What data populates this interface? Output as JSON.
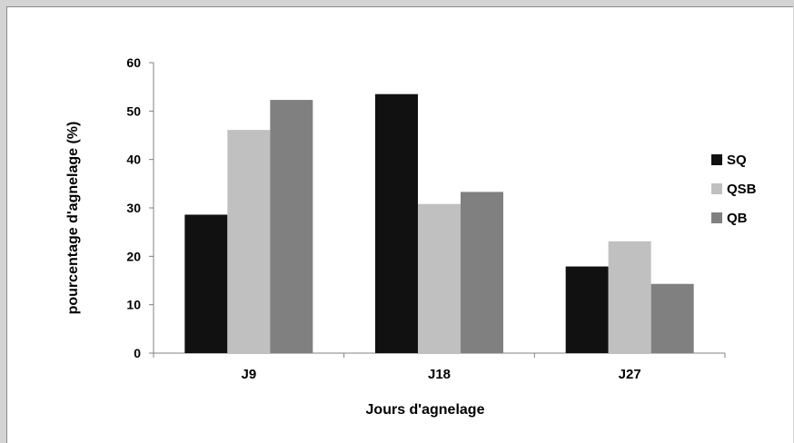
{
  "chart_data": {
    "type": "bar",
    "title": "",
    "xlabel": "Jours d'agnelage",
    "ylabel": "pourcentage d'agnelage  (%)",
    "categories": [
      "J9",
      "J18",
      "J27"
    ],
    "ylim": [
      0,
      60
    ],
    "yticks": [
      0,
      10,
      20,
      30,
      40,
      50,
      60
    ],
    "grid": false,
    "legend_position": "right",
    "series": [
      {
        "name": "SQ",
        "color": "#111111",
        "values": [
          28.6,
          53.5,
          17.9
        ]
      },
      {
        "name": "QSB",
        "color": "#c0c0c0",
        "values": [
          46.1,
          30.8,
          23.1
        ]
      },
      {
        "name": "QB",
        "color": "#808080",
        "values": [
          52.3,
          33.3,
          14.3
        ]
      }
    ]
  }
}
